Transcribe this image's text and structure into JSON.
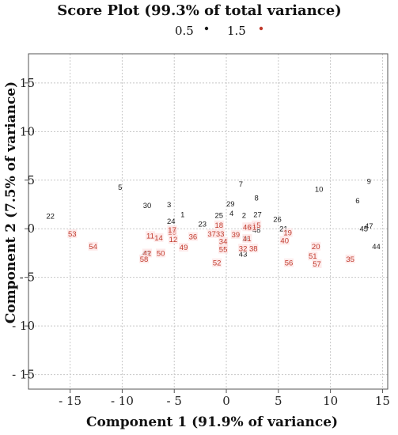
{
  "chart_data": {
    "type": "scatter",
    "title": "Score Plot (99.3% of total variance)",
    "xlabel": "Component 1 (91.9% of variance)",
    "ylabel": "Component 2 (7.5% of variance)",
    "xlim": [
      -19,
      15.5
    ],
    "ylim": [
      -16.5,
      18
    ],
    "xticks": [
      -15,
      -10,
      -5,
      0,
      5,
      10,
      15
    ],
    "xtick_labels": [
      "- 15",
      "- 10",
      "- 5",
      "0",
      "5",
      "10",
      "15"
    ],
    "yticks": [
      -15,
      -10,
      -5,
      0,
      5,
      10,
      15
    ],
    "ytick_labels": [
      "- 15",
      "- 10",
      "- 5",
      "0",
      "5",
      "10",
      "15"
    ],
    "grid": true,
    "legend_position": "top-center",
    "series": [
      {
        "name": "0.5",
        "color": "#1a1a1a",
        "points": [
          {
            "label": "1",
            "x": -4.2,
            "y": 1.5
          },
          {
            "label": "2",
            "x": 1.7,
            "y": 1.4
          },
          {
            "label": "3",
            "x": -5.5,
            "y": 2.5
          },
          {
            "label": "4",
            "x": 0.5,
            "y": 1.6
          },
          {
            "label": "5",
            "x": -10.2,
            "y": 4.3
          },
          {
            "label": "6",
            "x": 12.6,
            "y": 2.9
          },
          {
            "label": "7",
            "x": 1.4,
            "y": 4.6
          },
          {
            "label": "8",
            "x": 2.9,
            "y": 3.2
          },
          {
            "label": "9",
            "x": 13.7,
            "y": 4.9
          },
          {
            "label": "10",
            "x": 8.9,
            "y": 4.1
          },
          {
            "label": "16",
            "x": 1.9,
            "y": -1.0
          },
          {
            "label": "21",
            "x": 5.5,
            "y": 0.0
          },
          {
            "label": "22",
            "x": -16.9,
            "y": 1.3
          },
          {
            "label": "23",
            "x": -2.3,
            "y": 0.5
          },
          {
            "label": "24",
            "x": -5.3,
            "y": 0.8
          },
          {
            "label": "25",
            "x": -0.7,
            "y": 1.4
          },
          {
            "label": "26",
            "x": 4.9,
            "y": 1.0
          },
          {
            "label": "27",
            "x": 3.0,
            "y": 1.5
          },
          {
            "label": "29",
            "x": 0.4,
            "y": 2.6
          },
          {
            "label": "30",
            "x": -7.6,
            "y": 2.4
          },
          {
            "label": "43",
            "x": -7.7,
            "y": -2.5
          },
          {
            "label": "43",
            "x": 1.6,
            "y": -2.6
          },
          {
            "label": "44",
            "x": 14.4,
            "y": -1.8
          },
          {
            "label": "45",
            "x": 13.2,
            "y": 0.0
          },
          {
            "label": "47",
            "x": 13.7,
            "y": 0.3
          },
          {
            "label": "48",
            "x": 2.9,
            "y": -0.1
          }
        ]
      },
      {
        "name": "1.5",
        "color": "#c0392b",
        "points": [
          {
            "label": "11",
            "x": -7.3,
            "y": -0.7
          },
          {
            "label": "12",
            "x": -5.1,
            "y": -1.1
          },
          {
            "label": "13",
            "x": -5.2,
            "y": -0.3
          },
          {
            "label": "14",
            "x": -6.5,
            "y": -0.9
          },
          {
            "label": "15",
            "x": 2.9,
            "y": 0.4
          },
          {
            "label": "17",
            "x": -5.2,
            "y": -0.1
          },
          {
            "label": "18",
            "x": -0.7,
            "y": 0.4
          },
          {
            "label": "19",
            "x": 5.9,
            "y": -0.4
          },
          {
            "label": "20",
            "x": 8.6,
            "y": -1.8
          },
          {
            "label": "31",
            "x": 2.5,
            "y": 0.2
          },
          {
            "label": "32",
            "x": 1.6,
            "y": -2.0
          },
          {
            "label": "33",
            "x": -0.6,
            "y": -0.5
          },
          {
            "label": "34",
            "x": -0.3,
            "y": -1.3
          },
          {
            "label": "35",
            "x": 11.9,
            "y": -3.1
          },
          {
            "label": "36",
            "x": -3.2,
            "y": -0.8
          },
          {
            "label": "37",
            "x": -1.4,
            "y": -0.5
          },
          {
            "label": "38",
            "x": 2.6,
            "y": -2.0
          },
          {
            "label": "39",
            "x": 0.9,
            "y": -0.6
          },
          {
            "label": "40",
            "x": 5.6,
            "y": -1.2
          },
          {
            "label": "41",
            "x": 2.0,
            "y": -1.0
          },
          {
            "label": "42",
            "x": -7.6,
            "y": -2.5
          },
          {
            "label": "46",
            "x": 2.0,
            "y": 0.2
          },
          {
            "label": "49",
            "x": -4.1,
            "y": -1.9
          },
          {
            "label": "50",
            "x": -6.3,
            "y": -2.5
          },
          {
            "label": "51",
            "x": 8.3,
            "y": -2.8
          },
          {
            "label": "52",
            "x": -0.9,
            "y": -3.5
          },
          {
            "label": "53",
            "x": -14.8,
            "y": -0.5
          },
          {
            "label": "54",
            "x": -12.8,
            "y": -1.8
          },
          {
            "label": "55",
            "x": -0.3,
            "y": -2.1
          },
          {
            "label": "56",
            "x": 6.0,
            "y": -3.5
          },
          {
            "label": "57",
            "x": 8.7,
            "y": -3.6
          },
          {
            "label": "58",
            "x": -7.9,
            "y": -3.1
          }
        ]
      }
    ]
  }
}
